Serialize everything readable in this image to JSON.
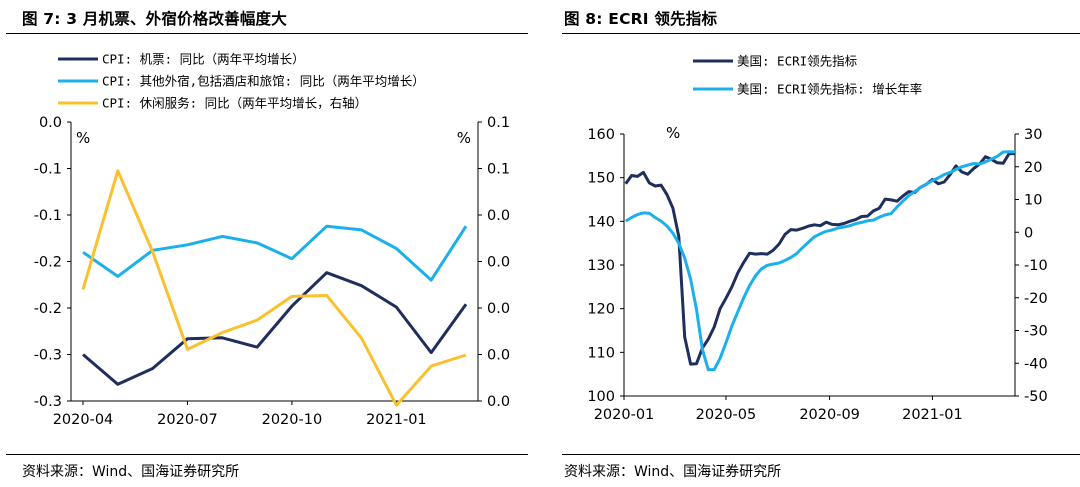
{
  "left": {
    "title": "图 7:  3 月机票、外宿价格改善幅度大",
    "source": "资料来源：Wind、国海证券研究所",
    "chart_data": {
      "type": "line",
      "x": [
        "2020-04",
        "2020-05",
        "2020-06",
        "2020-07",
        "2020-08",
        "2020-09",
        "2020-10",
        "2020-11",
        "2020-12",
        "2021-01",
        "2021-02",
        "2021-03"
      ],
      "x_tick_labels": [
        "2020-04",
        "2020-07",
        "2020-10",
        "2021-01"
      ],
      "y_left_ticks": [
        "0.0",
        "-0.1",
        "-0.1",
        "-0.2",
        "-0.2",
        "-0.3",
        "-0.3"
      ],
      "y_right_ticks": [
        "0.1",
        "0.1",
        "0.0",
        "0.0",
        "0.0",
        "0.0",
        "0.0"
      ],
      "ylim_left": [
        -0.3,
        0.0
      ],
      "ylim_right": [
        0.0,
        0.1
      ],
      "unit_left": "%",
      "unit_right": "%",
      "legend_position": "top-left",
      "series": [
        {
          "name": "CPI: 机票: 同比（两年平均增长）",
          "axis": "left",
          "color": "#1F2E5C",
          "values": [
            -0.25,
            -0.282,
            -0.265,
            -0.233,
            -0.232,
            -0.242,
            -0.198,
            -0.162,
            -0.176,
            -0.199,
            -0.248,
            -0.196
          ]
        },
        {
          "name": "CPI: 其他外宿,包括酒店和旅馆: 同比（两年平均增长）",
          "axis": "left",
          "color": "#1CB0EA",
          "values": [
            -0.14,
            -0.166,
            -0.138,
            -0.132,
            -0.123,
            -0.13,
            -0.147,
            -0.112,
            -0.116,
            -0.136,
            -0.17,
            -0.112
          ]
        },
        {
          "name": "CPI: 休闲服务: 同比（两年平均增长，右轴）",
          "axis": "right",
          "color": "#FBC02D",
          "values": [
            0.04,
            0.0825,
            0.0535,
            0.0185,
            0.0245,
            0.029,
            0.0375,
            0.0378,
            0.0225,
            -0.0015,
            0.0125,
            0.0165
          ]
        }
      ]
    }
  },
  "right": {
    "title": "图 8:  ECRI 领先指标",
    "source": "资料来源：Wind、国海证券研究所",
    "chart_data": {
      "type": "line",
      "x_tick_labels": [
        "2020-01",
        "2020-05",
        "2020-09",
        "2021-01"
      ],
      "x_start": "2020-01-01",
      "x_end": "2021-04-09",
      "y_left_ticks": [
        "160",
        "150",
        "140",
        "130",
        "120",
        "110",
        "100"
      ],
      "y_right_ticks": [
        "30",
        "20",
        "10",
        "0",
        "-10",
        "-20",
        "-30",
        "-40",
        "-50"
      ],
      "ylim_left": [
        100,
        160
      ],
      "ylim_right": [
        -50,
        30
      ],
      "unit_left": "%",
      "legend_position": "top-left",
      "series": [
        {
          "name": "美国: ECRI领先指标",
          "axis": "left",
          "color": "#1F2E5C",
          "dates": [
            "2020-01-03",
            "2020-01-10",
            "2020-01-17",
            "2020-01-24",
            "2020-01-31",
            "2020-02-07",
            "2020-02-14",
            "2020-02-21",
            "2020-02-28",
            "2020-03-06",
            "2020-03-13",
            "2020-03-20",
            "2020-03-27",
            "2020-04-03",
            "2020-04-10",
            "2020-04-17",
            "2020-04-24",
            "2020-05-01",
            "2020-05-08",
            "2020-05-15",
            "2020-05-22",
            "2020-05-29",
            "2020-06-05",
            "2020-06-12",
            "2020-06-19",
            "2020-06-26",
            "2020-07-03",
            "2020-07-10",
            "2020-07-17",
            "2020-07-24",
            "2020-07-31",
            "2020-08-07",
            "2020-08-14",
            "2020-08-21",
            "2020-08-28",
            "2020-09-04",
            "2020-09-11",
            "2020-09-18",
            "2020-09-25",
            "2020-10-02",
            "2020-10-09",
            "2020-10-16",
            "2020-10-23",
            "2020-10-30",
            "2020-11-06",
            "2020-11-13",
            "2020-11-20",
            "2020-11-27",
            "2020-12-04",
            "2020-12-11",
            "2020-12-18",
            "2020-12-25",
            "2021-01-01",
            "2021-01-08",
            "2021-01-15",
            "2021-01-22",
            "2021-01-29",
            "2021-02-05",
            "2021-02-12",
            "2021-02-19",
            "2021-02-26",
            "2021-03-05",
            "2021-03-12",
            "2021-03-19",
            "2021-03-26",
            "2021-04-02",
            "2021-04-09"
          ],
          "values": [
            148.6,
            150.5,
            150.3,
            151.2,
            148.8,
            148.1,
            148.3,
            146.1,
            143.0,
            136.5,
            113.5,
            107.3,
            107.4,
            111.0,
            113.0,
            115.8,
            120.0,
            122.4,
            125.0,
            128.2,
            130.6,
            132.7,
            132.5,
            132.6,
            132.5,
            133.4,
            134.8,
            137.0,
            138.1,
            138.0,
            138.4,
            138.9,
            139.2,
            139.0,
            139.8,
            139.3,
            139.2,
            139.5,
            140.0,
            140.4,
            141.1,
            141.2,
            142.4,
            143.0,
            145.1,
            144.9,
            144.6,
            145.8,
            146.8,
            146.6,
            147.8,
            148.5,
            149.6,
            148.6,
            149.0,
            150.7,
            152.7,
            151.3,
            150.8,
            152.1,
            153.1,
            154.8,
            154.2,
            153.4,
            153.3,
            155.5,
            155.5
          ]
        },
        {
          "name": "美国: ECRI领先指标: 增长年率",
          "axis": "right",
          "color": "#1CB0EA",
          "dates": [
            "2020-01-03",
            "2020-01-10",
            "2020-01-17",
            "2020-01-24",
            "2020-01-31",
            "2020-02-07",
            "2020-02-14",
            "2020-02-21",
            "2020-02-28",
            "2020-03-06",
            "2020-03-13",
            "2020-03-20",
            "2020-03-27",
            "2020-04-03",
            "2020-04-10",
            "2020-04-17",
            "2020-04-24",
            "2020-05-01",
            "2020-05-08",
            "2020-05-15",
            "2020-05-22",
            "2020-05-29",
            "2020-06-05",
            "2020-06-12",
            "2020-06-19",
            "2020-06-26",
            "2020-07-03",
            "2020-07-10",
            "2020-07-17",
            "2020-07-24",
            "2020-07-31",
            "2020-08-07",
            "2020-08-14",
            "2020-08-21",
            "2020-08-28",
            "2020-09-04",
            "2020-09-11",
            "2020-09-18",
            "2020-09-25",
            "2020-10-02",
            "2020-10-09",
            "2020-10-16",
            "2020-10-23",
            "2020-10-30",
            "2020-11-06",
            "2020-11-13",
            "2020-11-20",
            "2020-11-27",
            "2020-12-04",
            "2020-12-11",
            "2020-12-18",
            "2020-12-25",
            "2021-01-01",
            "2021-01-08",
            "2021-01-15",
            "2021-01-22",
            "2021-01-29",
            "2021-02-05",
            "2021-02-12",
            "2021-02-19",
            "2021-02-26",
            "2021-03-05",
            "2021-03-12",
            "2021-03-19",
            "2021-03-26",
            "2021-04-02",
            "2021-04-09"
          ],
          "values": [
            3.4,
            4.5,
            5.4,
            5.9,
            5.8,
            4.5,
            3.4,
            1.9,
            -0.3,
            -3.4,
            -7.9,
            -14.3,
            -23.6,
            -35.8,
            -42.0,
            -41.9,
            -38.5,
            -33.7,
            -28.6,
            -24.3,
            -20.0,
            -16.3,
            -13.3,
            -11.2,
            -10.1,
            -9.7,
            -9.4,
            -8.6,
            -7.7,
            -6.5,
            -4.7,
            -3.0,
            -1.4,
            -0.5,
            0.3,
            0.7,
            1.3,
            1.6,
            2.0,
            2.6,
            3.0,
            3.5,
            3.7,
            4.6,
            5.3,
            5.7,
            7.7,
            9.5,
            11.2,
            12.4,
            13.7,
            14.7,
            15.8,
            16.6,
            17.6,
            18.2,
            19.2,
            20.0,
            20.5,
            21.0,
            20.8,
            21.5,
            22.3,
            23.2,
            24.5,
            24.6,
            24.5
          ]
        }
      ]
    }
  }
}
